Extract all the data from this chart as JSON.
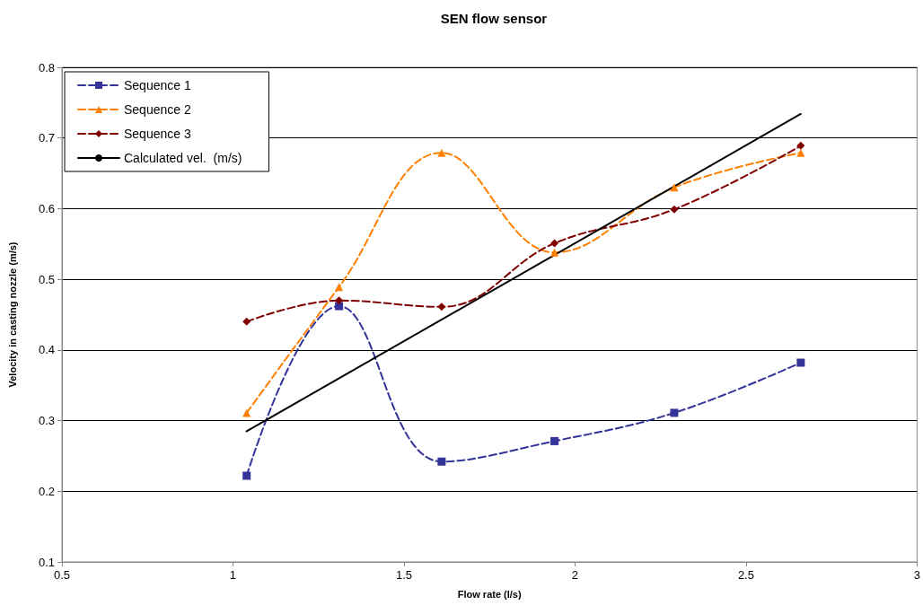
{
  "chart_data": {
    "type": "line",
    "title": "SEN flow sensor",
    "xlabel": "Flow rate (l/s)",
    "ylabel": "Velocity in casting nozzle (m/s)",
    "xlim": [
      0.5,
      3
    ],
    "xticks": [
      0.5,
      1,
      1.5,
      2,
      2.5,
      3
    ],
    "ylim": [
      0.1,
      0.8
    ],
    "yticks": [
      0.1,
      0.2,
      0.3,
      0.4,
      0.5,
      0.6,
      0.7,
      0.8
    ],
    "grid": "y",
    "legend": "top left",
    "series": [
      {
        "name": "Sequence 1",
        "color": "#333399",
        "marker": "square",
        "line_style": "dashed",
        "x": [
          1.04,
          1.31,
          1.61,
          1.94,
          2.29,
          2.66
        ],
        "values": [
          0.222,
          0.462,
          0.242,
          0.271,
          0.311,
          0.382
        ]
      },
      {
        "name": "Sequence 2",
        "color": "#ff8000",
        "marker": "triangle",
        "line_style": "dashed",
        "x": [
          1.04,
          1.31,
          1.61,
          1.94,
          2.29,
          2.66
        ],
        "values": [
          0.311,
          0.489,
          0.679,
          0.538,
          0.63,
          0.679
        ]
      },
      {
        "name": "Sequence 3",
        "color": "#800000",
        "marker": "diamond",
        "line_style": "dashed",
        "x": [
          1.04,
          1.31,
          1.61,
          1.94,
          2.29,
          2.66
        ],
        "values": [
          0.44,
          0.47,
          0.461,
          0.551,
          0.599,
          0.689
        ]
      },
      {
        "name": "Calculated vel.  (m/s)",
        "color": "#000000",
        "marker": "none",
        "line_style": "solid",
        "x": [
          1.04,
          2.66
        ],
        "values": [
          0.285,
          0.734
        ]
      }
    ]
  }
}
